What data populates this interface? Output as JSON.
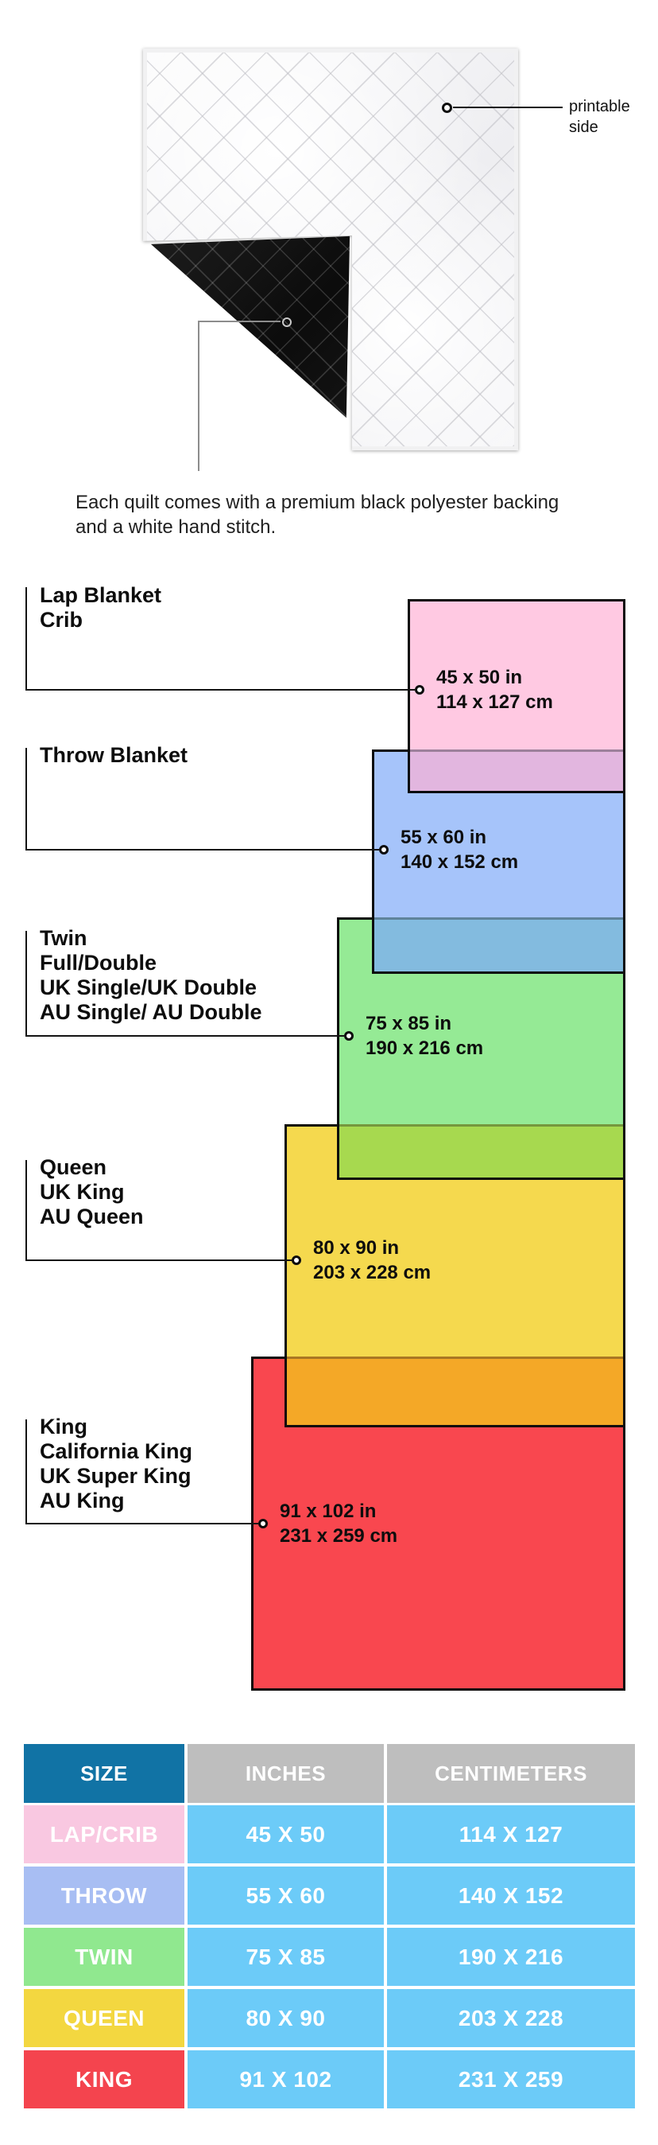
{
  "quilt": {
    "printable_label": "printable side",
    "caption": "Each quilt comes with a premium black polyester backing and a white hand stitch."
  },
  "diagram": {
    "border_color": "#0c0c0c",
    "sizes": [
      {
        "key": "lap-crib",
        "label_lines": [
          "Lap Blanket",
          "Crib"
        ],
        "inches": "45 x 50 in",
        "centimeters": "114 x 127 cm",
        "fill": "#FFC9E2",
        "overlap_fill": "#E2B6DF"
      },
      {
        "key": "throw",
        "label_lines": [
          "Throw Blanket"
        ],
        "inches": "55 x 60 in",
        "centimeters": "140 x 152 cm",
        "fill": "#A6C4FA",
        "overlap_fill": "#83BBDF"
      },
      {
        "key": "twin",
        "label_lines": [
          "Twin",
          "Full/Double",
          "UK Single/UK Double",
          "AU Single/ AU Double"
        ],
        "inches": "75 x 85 in",
        "centimeters": "190 x 216 cm",
        "fill": "#95EA95",
        "overlap_fill": "#A7D94F"
      },
      {
        "key": "queen",
        "label_lines": [
          "Queen",
          "UK King",
          "AU Queen"
        ],
        "inches": "80 x 90 in",
        "centimeters": "203 x 228 cm",
        "fill": "#F5D94E",
        "overlap_fill": "#F4A827"
      },
      {
        "key": "king",
        "label_lines": [
          "King",
          "California King",
          "UK Super King",
          "AU King"
        ],
        "inches": "91 x 102 in",
        "centimeters": "231 x 259 cm",
        "fill": "#F9474F",
        "overlap_fill": null
      }
    ]
  },
  "table": {
    "headers": [
      "SIZE",
      "INCHES",
      "CENTIMETERS"
    ],
    "header_size_bg": "#1173A5",
    "header_other_bg": "#BEBEBE",
    "value_cell_bg": "#6CCBF8",
    "rows": [
      {
        "size": "LAP/CRIB",
        "inches": "45 X 50",
        "centimeters": "114 X 127",
        "label_bg": "#F9C8E1"
      },
      {
        "size": "THROW",
        "inches": "55 X 60",
        "centimeters": "140 X 152",
        "label_bg": "#A8BEF3"
      },
      {
        "size": "TWIN",
        "inches": "75 X 85",
        "centimeters": "190 X 216",
        "label_bg": "#90E88F"
      },
      {
        "size": "QUEEN",
        "inches": "80 X 90",
        "centimeters": "203 X 228",
        "label_bg": "#F3D740"
      },
      {
        "size": "KING",
        "inches": "91 X 102",
        "centimeters": "231 X 259",
        "label_bg": "#F4444E"
      }
    ]
  }
}
